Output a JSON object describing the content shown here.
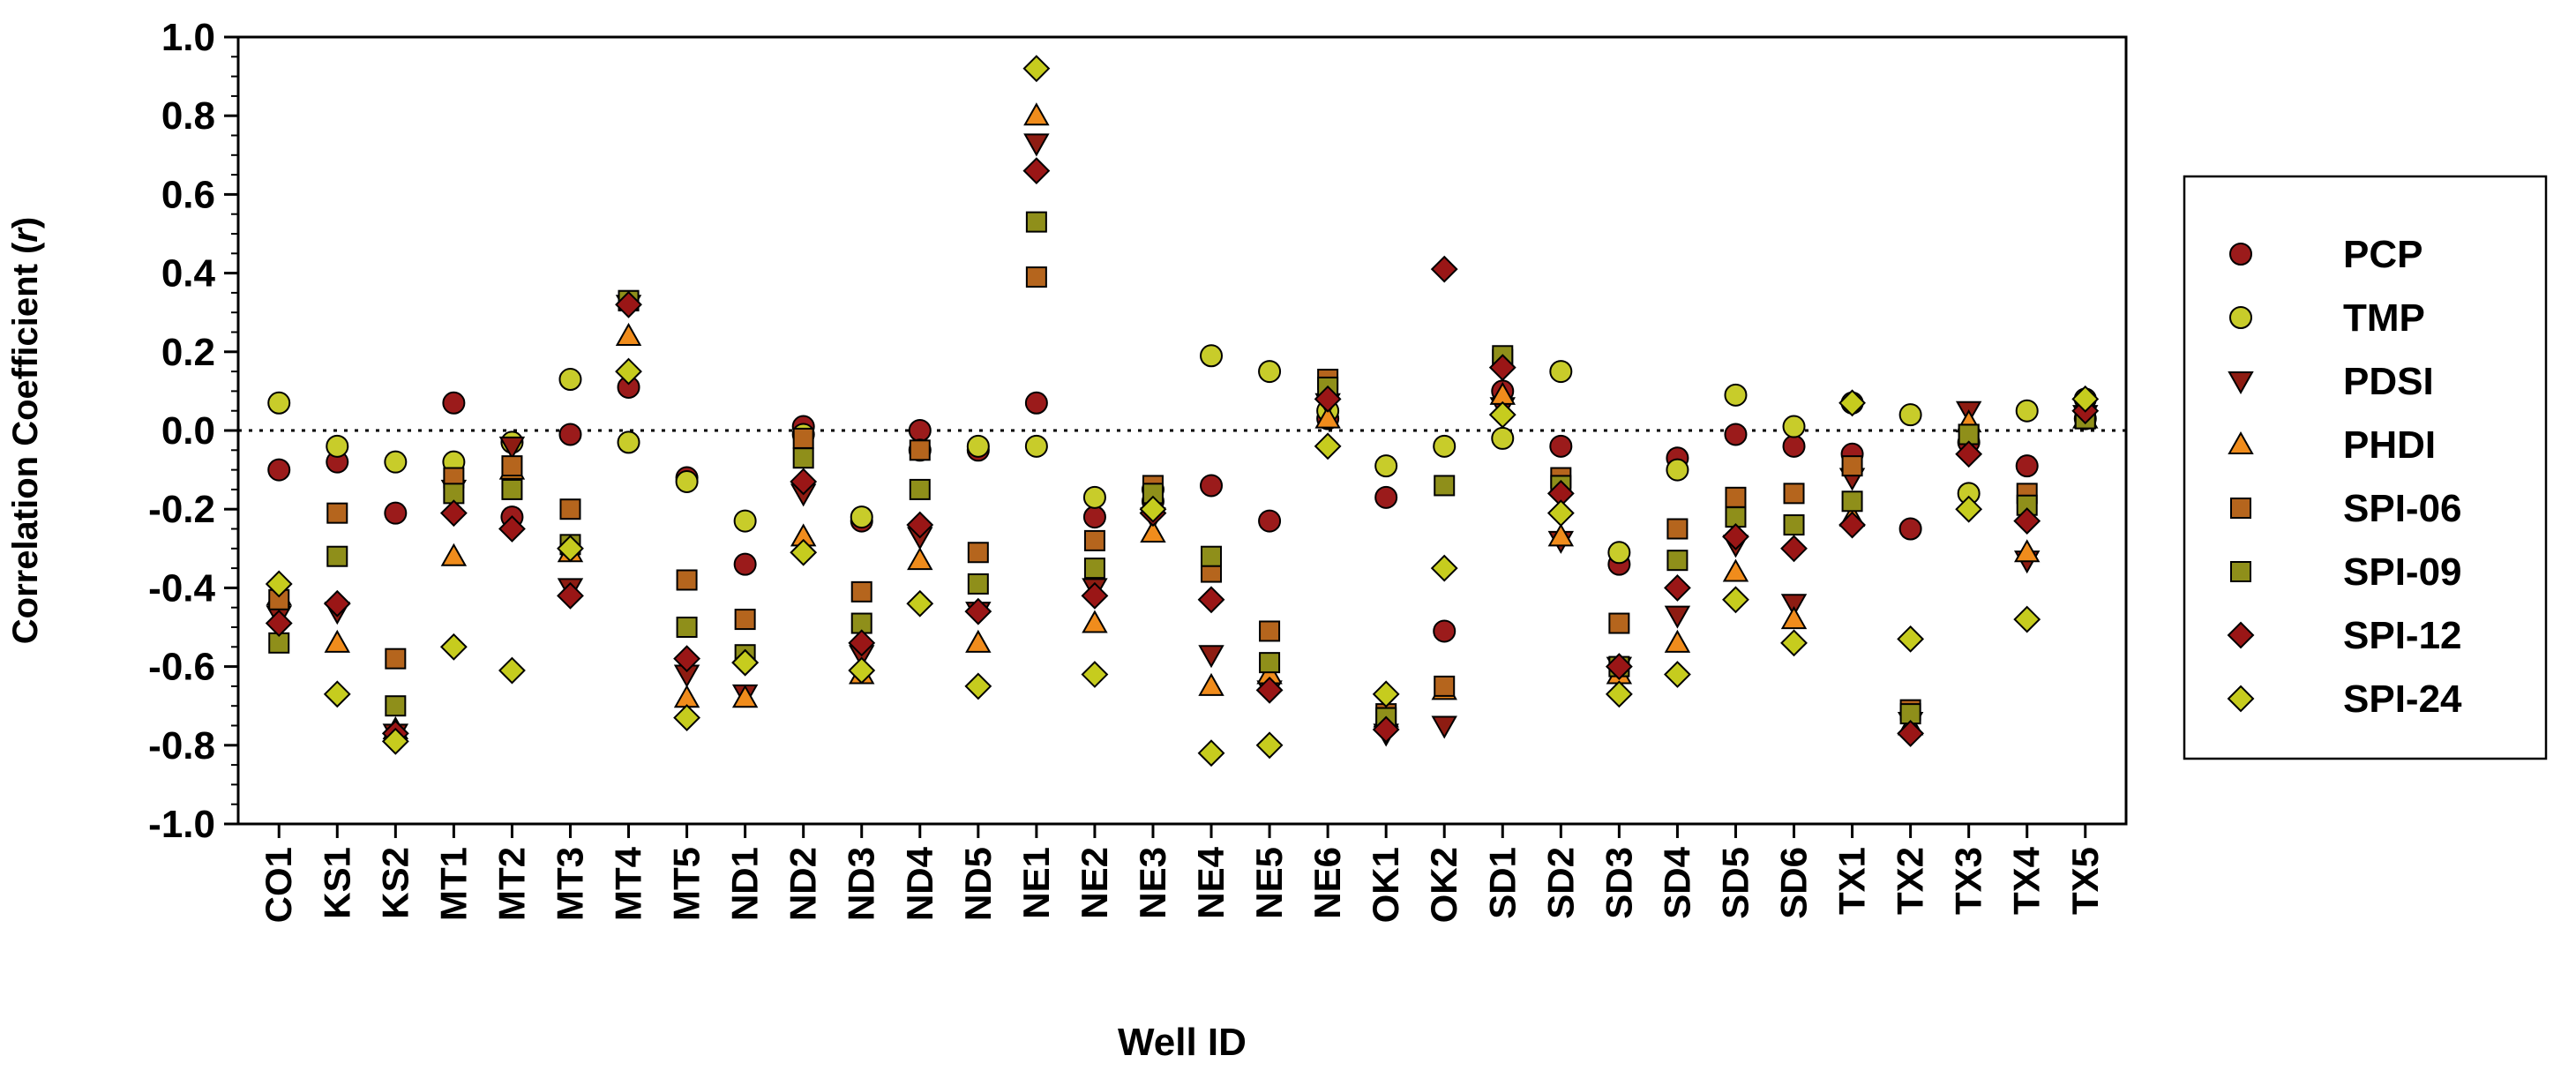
{
  "chart_data": {
    "type": "scatter",
    "xlabel": "Well ID",
    "ylabel_main": "Correlation Coefficient (",
    "ylabel_var": "r",
    "ylabel_close": ")",
    "ylim": [
      -1.0,
      1.0
    ],
    "ytick_step": 0.2,
    "reference_line": 0.0,
    "legend_position": "right",
    "categories": [
      "CO1",
      "KS1",
      "KS2",
      "MT1",
      "MT2",
      "MT3",
      "MT4",
      "MT5",
      "ND1",
      "ND2",
      "ND3",
      "ND4",
      "ND5",
      "NE1",
      "NE2",
      "NE3",
      "NE4",
      "NE5",
      "NE6",
      "OK1",
      "OK2",
      "SD1",
      "SD2",
      "SD3",
      "SD4",
      "SD5",
      "SD6",
      "TX1",
      "TX2",
      "TX3",
      "TX4",
      "TX5"
    ],
    "series": [
      {
        "name": "PCP",
        "marker": "circle",
        "color": "#9b1b1b",
        "values": [
          -0.1,
          -0.08,
          -0.21,
          0.07,
          -0.22,
          -0.01,
          0.11,
          -0.12,
          -0.34,
          0.01,
          -0.23,
          0.0,
          -0.05,
          0.07,
          -0.22,
          -0.18,
          -0.14,
          -0.23,
          0.03,
          -0.17,
          -0.51,
          0.1,
          -0.04,
          -0.34,
          -0.07,
          -0.01,
          -0.04,
          -0.06,
          -0.25,
          -0.03,
          -0.09,
          0.03
        ]
      },
      {
        "name": "TMP",
        "marker": "circle",
        "color": "#c8cc2a",
        "values": [
          0.07,
          -0.04,
          -0.08,
          -0.08,
          -0.03,
          0.13,
          -0.03,
          -0.13,
          -0.23,
          -0.01,
          -0.22,
          -0.05,
          -0.04,
          -0.04,
          -0.17,
          -0.15,
          0.19,
          0.15,
          0.05,
          -0.09,
          -0.04,
          -0.02,
          0.15,
          -0.31,
          -0.1,
          0.09,
          0.01,
          0.07,
          0.04,
          -0.16,
          0.05,
          0.08
        ]
      },
      {
        "name": "PDSI",
        "marker": "tri-down",
        "color": "#8e1c12",
        "values": [
          -0.47,
          -0.46,
          -0.77,
          -0.15,
          -0.04,
          -0.4,
          0.32,
          -0.62,
          -0.67,
          -0.16,
          -0.57,
          -0.27,
          -0.46,
          0.73,
          -0.4,
          -0.22,
          -0.57,
          -0.66,
          0.07,
          -0.77,
          -0.75,
          0.06,
          -0.28,
          -0.6,
          -0.47,
          -0.29,
          -0.44,
          -0.12,
          -0.74,
          0.05,
          -0.33,
          0.04
        ]
      },
      {
        "name": "PHDI",
        "marker": "tri-up",
        "color": "#f08c1c",
        "values": [
          -0.42,
          -0.54,
          -0.76,
          -0.32,
          -0.1,
          -0.31,
          0.24,
          -0.68,
          -0.68,
          -0.27,
          -0.62,
          -0.33,
          -0.54,
          0.8,
          -0.49,
          -0.26,
          -0.65,
          -0.62,
          0.03,
          -0.73,
          -0.66,
          0.09,
          -0.27,
          -0.62,
          -0.54,
          -0.36,
          -0.48,
          -0.22,
          -0.75,
          0.02,
          -0.31,
          0.03
        ]
      },
      {
        "name": "SPI-06",
        "marker": "square",
        "color": "#b5651d",
        "values": [
          -0.43,
          -0.21,
          -0.58,
          -0.12,
          -0.09,
          -0.2,
          0.33,
          -0.38,
          -0.48,
          -0.02,
          -0.41,
          -0.05,
          -0.31,
          0.39,
          -0.28,
          -0.14,
          -0.36,
          -0.51,
          0.13,
          -0.72,
          -0.65,
          0.18,
          -0.12,
          -0.49,
          -0.25,
          -0.17,
          -0.16,
          -0.09,
          -0.71,
          -0.01,
          -0.16,
          0.03
        ]
      },
      {
        "name": "SPI-09",
        "marker": "square",
        "color": "#8f8f1a",
        "values": [
          -0.54,
          -0.32,
          -0.7,
          -0.16,
          -0.15,
          -0.29,
          0.33,
          -0.5,
          -0.57,
          -0.07,
          -0.49,
          -0.15,
          -0.39,
          0.53,
          -0.35,
          -0.16,
          -0.32,
          -0.59,
          0.11,
          -0.73,
          -0.14,
          0.19,
          -0.14,
          -0.6,
          -0.33,
          -0.22,
          -0.24,
          -0.18,
          -0.72,
          -0.01,
          -0.19,
          0.03
        ]
      },
      {
        "name": "SPI-12",
        "marker": "diamond",
        "color": "#9a1616",
        "values": [
          -0.49,
          -0.44,
          -0.77,
          -0.21,
          -0.25,
          -0.42,
          0.32,
          -0.58,
          -0.59,
          -0.13,
          -0.54,
          -0.24,
          -0.46,
          0.66,
          -0.42,
          -0.21,
          -0.43,
          -0.66,
          0.08,
          -0.76,
          0.41,
          0.16,
          -0.16,
          -0.6,
          -0.4,
          -0.27,
          -0.3,
          -0.24,
          -0.77,
          -0.06,
          -0.23,
          0.05
        ]
      },
      {
        "name": "SPI-24",
        "marker": "diamond",
        "color": "#c6cc1e",
        "values": [
          -0.39,
          -0.67,
          -0.79,
          -0.55,
          -0.61,
          -0.3,
          0.15,
          -0.73,
          -0.59,
          -0.31,
          -0.61,
          -0.44,
          -0.65,
          0.92,
          -0.62,
          -0.2,
          -0.82,
          -0.8,
          -0.04,
          -0.67,
          -0.35,
          0.04,
          -0.21,
          -0.67,
          -0.62,
          -0.43,
          -0.54,
          0.07,
          -0.53,
          -0.2,
          -0.48,
          0.08
        ]
      }
    ]
  }
}
